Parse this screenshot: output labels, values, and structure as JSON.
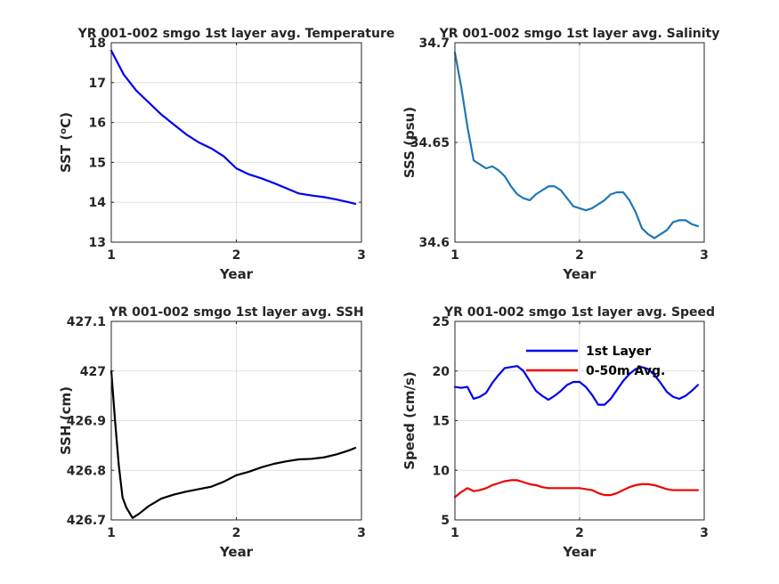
{
  "chart_data": [
    {
      "type": "line",
      "title": "YR 001-002 smgo 1st layer avg. Temperature",
      "xlabel": "Year",
      "ylabel": "SST (",
      "ylabel_sup": "o",
      "ylabel_unit": "C)",
      "xlim": [
        1,
        3
      ],
      "ylim": [
        13,
        18
      ],
      "xticks": [
        1,
        2,
        3
      ],
      "yticks": [
        13,
        14,
        15,
        16,
        17,
        18
      ],
      "grid": true,
      "series": [
        {
          "color": "#0000ee",
          "x": [
            1.0,
            1.1,
            1.2,
            1.3,
            1.4,
            1.5,
            1.6,
            1.7,
            1.8,
            1.9,
            2.0,
            2.1,
            2.2,
            2.3,
            2.4,
            2.5,
            2.6,
            2.7,
            2.8,
            2.9,
            2.95
          ],
          "values": [
            17.8,
            17.2,
            16.8,
            16.5,
            16.2,
            15.95,
            15.7,
            15.5,
            15.35,
            15.15,
            14.85,
            14.7,
            14.6,
            14.48,
            14.35,
            14.22,
            14.17,
            14.13,
            14.07,
            14.0,
            13.96
          ]
        }
      ]
    },
    {
      "type": "line",
      "title": "YR 001-002 smgo 1st layer avg. Salinity",
      "xlabel": "Year",
      "ylabel": "SSS (psu)",
      "xlim": [
        1,
        3
      ],
      "ylim": [
        34.6,
        34.7
      ],
      "xticks": [
        1,
        2,
        3
      ],
      "yticks": [
        34.6,
        34.65,
        34.7
      ],
      "ytick_labels": [
        "34.6",
        "34.65",
        "34.7"
      ],
      "grid": true,
      "series": [
        {
          "color": "#1f77b4",
          "x": [
            1.0,
            1.05,
            1.1,
            1.15,
            1.2,
            1.25,
            1.3,
            1.35,
            1.4,
            1.45,
            1.5,
            1.55,
            1.6,
            1.65,
            1.7,
            1.75,
            1.8,
            1.85,
            1.9,
            1.95,
            2.0,
            2.05,
            2.1,
            2.15,
            2.2,
            2.25,
            2.3,
            2.35,
            2.4,
            2.45,
            2.5,
            2.55,
            2.6,
            2.65,
            2.7,
            2.75,
            2.8,
            2.85,
            2.9,
            2.95
          ],
          "values": [
            34.695,
            34.678,
            34.658,
            34.641,
            34.639,
            34.637,
            34.638,
            34.636,
            34.633,
            34.628,
            34.624,
            34.622,
            34.621,
            34.624,
            34.626,
            34.628,
            34.628,
            34.626,
            34.622,
            34.618,
            34.617,
            34.616,
            34.617,
            34.619,
            34.621,
            34.624,
            34.625,
            34.625,
            34.621,
            34.615,
            34.607,
            34.604,
            34.602,
            34.604,
            34.606,
            34.61,
            34.611,
            34.611,
            34.609,
            34.608
          ]
        }
      ]
    },
    {
      "type": "line",
      "title": "YR 001-002 smgo 1st layer avg. SSH",
      "xlabel": "Year",
      "ylabel": "SSH (cm)",
      "xlim": [
        1,
        3
      ],
      "ylim": [
        426.7,
        427.1
      ],
      "xticks": [
        1,
        2,
        3
      ],
      "yticks": [
        426.7,
        426.8,
        426.9,
        427.0,
        427.1
      ],
      "ytick_labels": [
        "426.7",
        "426.8",
        "426.9",
        "427",
        "427.1"
      ],
      "grid": true,
      "series": [
        {
          "color": "#000000",
          "x": [
            1.0,
            1.03,
            1.06,
            1.09,
            1.12,
            1.17,
            1.22,
            1.3,
            1.4,
            1.5,
            1.6,
            1.7,
            1.8,
            1.9,
            2.0,
            2.1,
            2.2,
            2.3,
            2.4,
            2.5,
            2.6,
            2.7,
            2.8,
            2.9,
            2.95
          ],
          "values": [
            427.0,
            426.9,
            426.81,
            426.745,
            426.725,
            426.704,
            426.712,
            426.728,
            426.743,
            426.751,
            426.757,
            426.762,
            426.767,
            426.777,
            426.79,
            426.797,
            426.806,
            426.813,
            426.818,
            426.822,
            426.823,
            426.826,
            426.832,
            426.84,
            426.845
          ]
        }
      ]
    },
    {
      "type": "line",
      "title": "YR 001-002 smgo 1st layer avg. Speed",
      "xlabel": "Year",
      "ylabel": "Speed (cm/s)",
      "xlim": [
        1,
        3
      ],
      "ylim": [
        5,
        25
      ],
      "xticks": [
        1,
        2,
        3
      ],
      "yticks": [
        5,
        10,
        15,
        20,
        25
      ],
      "grid": true,
      "legend": "top-right",
      "series": [
        {
          "name": "1st Layer",
          "color": "#0000ee",
          "x": [
            1.0,
            1.05,
            1.1,
            1.15,
            1.2,
            1.25,
            1.3,
            1.35,
            1.4,
            1.45,
            1.5,
            1.55,
            1.6,
            1.65,
            1.7,
            1.75,
            1.8,
            1.85,
            1.9,
            1.95,
            2.0,
            2.05,
            2.1,
            2.15,
            2.2,
            2.25,
            2.3,
            2.35,
            2.4,
            2.45,
            2.5,
            2.55,
            2.6,
            2.65,
            2.7,
            2.75,
            2.8,
            2.85,
            2.9,
            2.95
          ],
          "values": [
            18.4,
            18.3,
            18.4,
            17.2,
            17.4,
            17.8,
            18.8,
            19.6,
            20.3,
            20.4,
            20.5,
            20.0,
            19.0,
            18.0,
            17.5,
            17.1,
            17.5,
            18.0,
            18.6,
            18.9,
            18.9,
            18.4,
            17.6,
            16.6,
            16.6,
            17.2,
            18.1,
            19.0,
            19.7,
            20.2,
            20.4,
            20.2,
            19.6,
            18.8,
            17.9,
            17.4,
            17.2,
            17.5,
            18.0,
            18.6
          ]
        },
        {
          "name": "0-50m Avg.",
          "color": "#ee0000",
          "x": [
            1.0,
            1.05,
            1.1,
            1.15,
            1.2,
            1.25,
            1.3,
            1.35,
            1.4,
            1.45,
            1.5,
            1.55,
            1.6,
            1.65,
            1.7,
            1.75,
            1.8,
            1.85,
            1.9,
            1.95,
            2.0,
            2.05,
            2.1,
            2.15,
            2.2,
            2.25,
            2.3,
            2.35,
            2.4,
            2.45,
            2.5,
            2.55,
            2.6,
            2.65,
            2.7,
            2.75,
            2.8,
            2.85,
            2.9,
            2.95
          ],
          "values": [
            7.3,
            7.8,
            8.2,
            7.9,
            8.0,
            8.2,
            8.5,
            8.7,
            8.9,
            9.0,
            9.0,
            8.8,
            8.6,
            8.5,
            8.3,
            8.2,
            8.2,
            8.2,
            8.2,
            8.2,
            8.2,
            8.1,
            8.0,
            7.7,
            7.5,
            7.5,
            7.7,
            8.0,
            8.3,
            8.5,
            8.6,
            8.6,
            8.5,
            8.3,
            8.1,
            8.0,
            8.0,
            8.0,
            8.0,
            8.0
          ]
        }
      ]
    }
  ]
}
